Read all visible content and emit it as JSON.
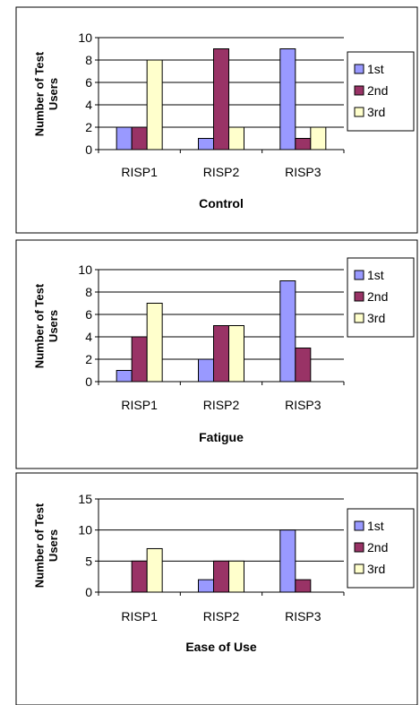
{
  "colors": {
    "series": [
      "#9999ff",
      "#993366",
      "#ffffcc"
    ]
  },
  "chart_data": [
    {
      "type": "bar",
      "title": "Control",
      "ylabel": "Number of Test Users",
      "categories": [
        "RISP1",
        "RISP2",
        "RISP3"
      ],
      "ylim": [
        0,
        10
      ],
      "yticks": [
        0,
        2,
        4,
        6,
        8,
        10
      ],
      "grid": true,
      "legend": "right",
      "series": [
        {
          "name": "1st",
          "values": [
            2,
            1,
            9
          ]
        },
        {
          "name": "2nd",
          "values": [
            2,
            9,
            1
          ]
        },
        {
          "name": "3rd",
          "values": [
            8,
            2,
            2
          ]
        }
      ]
    },
    {
      "type": "bar",
      "title": "Fatigue",
      "ylabel": "Number of Test Users",
      "categories": [
        "RISP1",
        "RISP2",
        "RISP3"
      ],
      "ylim": [
        0,
        10
      ],
      "yticks": [
        0,
        2,
        4,
        6,
        8,
        10
      ],
      "grid": true,
      "legend": "right",
      "series": [
        {
          "name": "1st",
          "values": [
            1,
            2,
            9
          ]
        },
        {
          "name": "2nd",
          "values": [
            4,
            5,
            3
          ]
        },
        {
          "name": "3rd",
          "values": [
            7,
            5,
            0
          ]
        }
      ]
    },
    {
      "type": "bar",
      "title": "Ease of Use",
      "ylabel": "Number of Test Users",
      "categories": [
        "RISP1",
        "RISP2",
        "RISP3"
      ],
      "ylim": [
        0,
        15
      ],
      "yticks": [
        0,
        5,
        10,
        15
      ],
      "grid": true,
      "legend": "right",
      "series": [
        {
          "name": "1st",
          "values": [
            0,
            2,
            10
          ]
        },
        {
          "name": "2nd",
          "values": [
            5,
            5,
            2
          ]
        },
        {
          "name": "3rd",
          "values": [
            7,
            5,
            0
          ]
        }
      ]
    }
  ]
}
